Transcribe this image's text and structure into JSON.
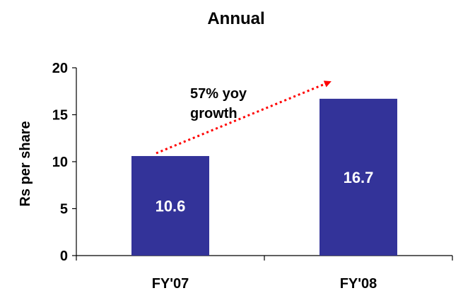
{
  "chart_data": {
    "type": "bar",
    "title": "Annual",
    "xlabel": "",
    "ylabel": "Rs per share",
    "categories": [
      "FY'07",
      "FY'08"
    ],
    "series": [
      {
        "values": [
          10.6,
          16.7
        ]
      }
    ],
    "data_labels": [
      "10.6",
      "16.7"
    ],
    "ylim": [
      0,
      20
    ],
    "yticks": [
      0,
      5,
      10,
      15,
      20
    ],
    "grid": false,
    "legend": "none",
    "annotation": {
      "lines": [
        "57% yoy",
        "growth"
      ]
    },
    "colors": {
      "bar": "#333399",
      "arrow": "#ff0000",
      "axis": "#000000",
      "data_label": "#ffffff"
    }
  }
}
